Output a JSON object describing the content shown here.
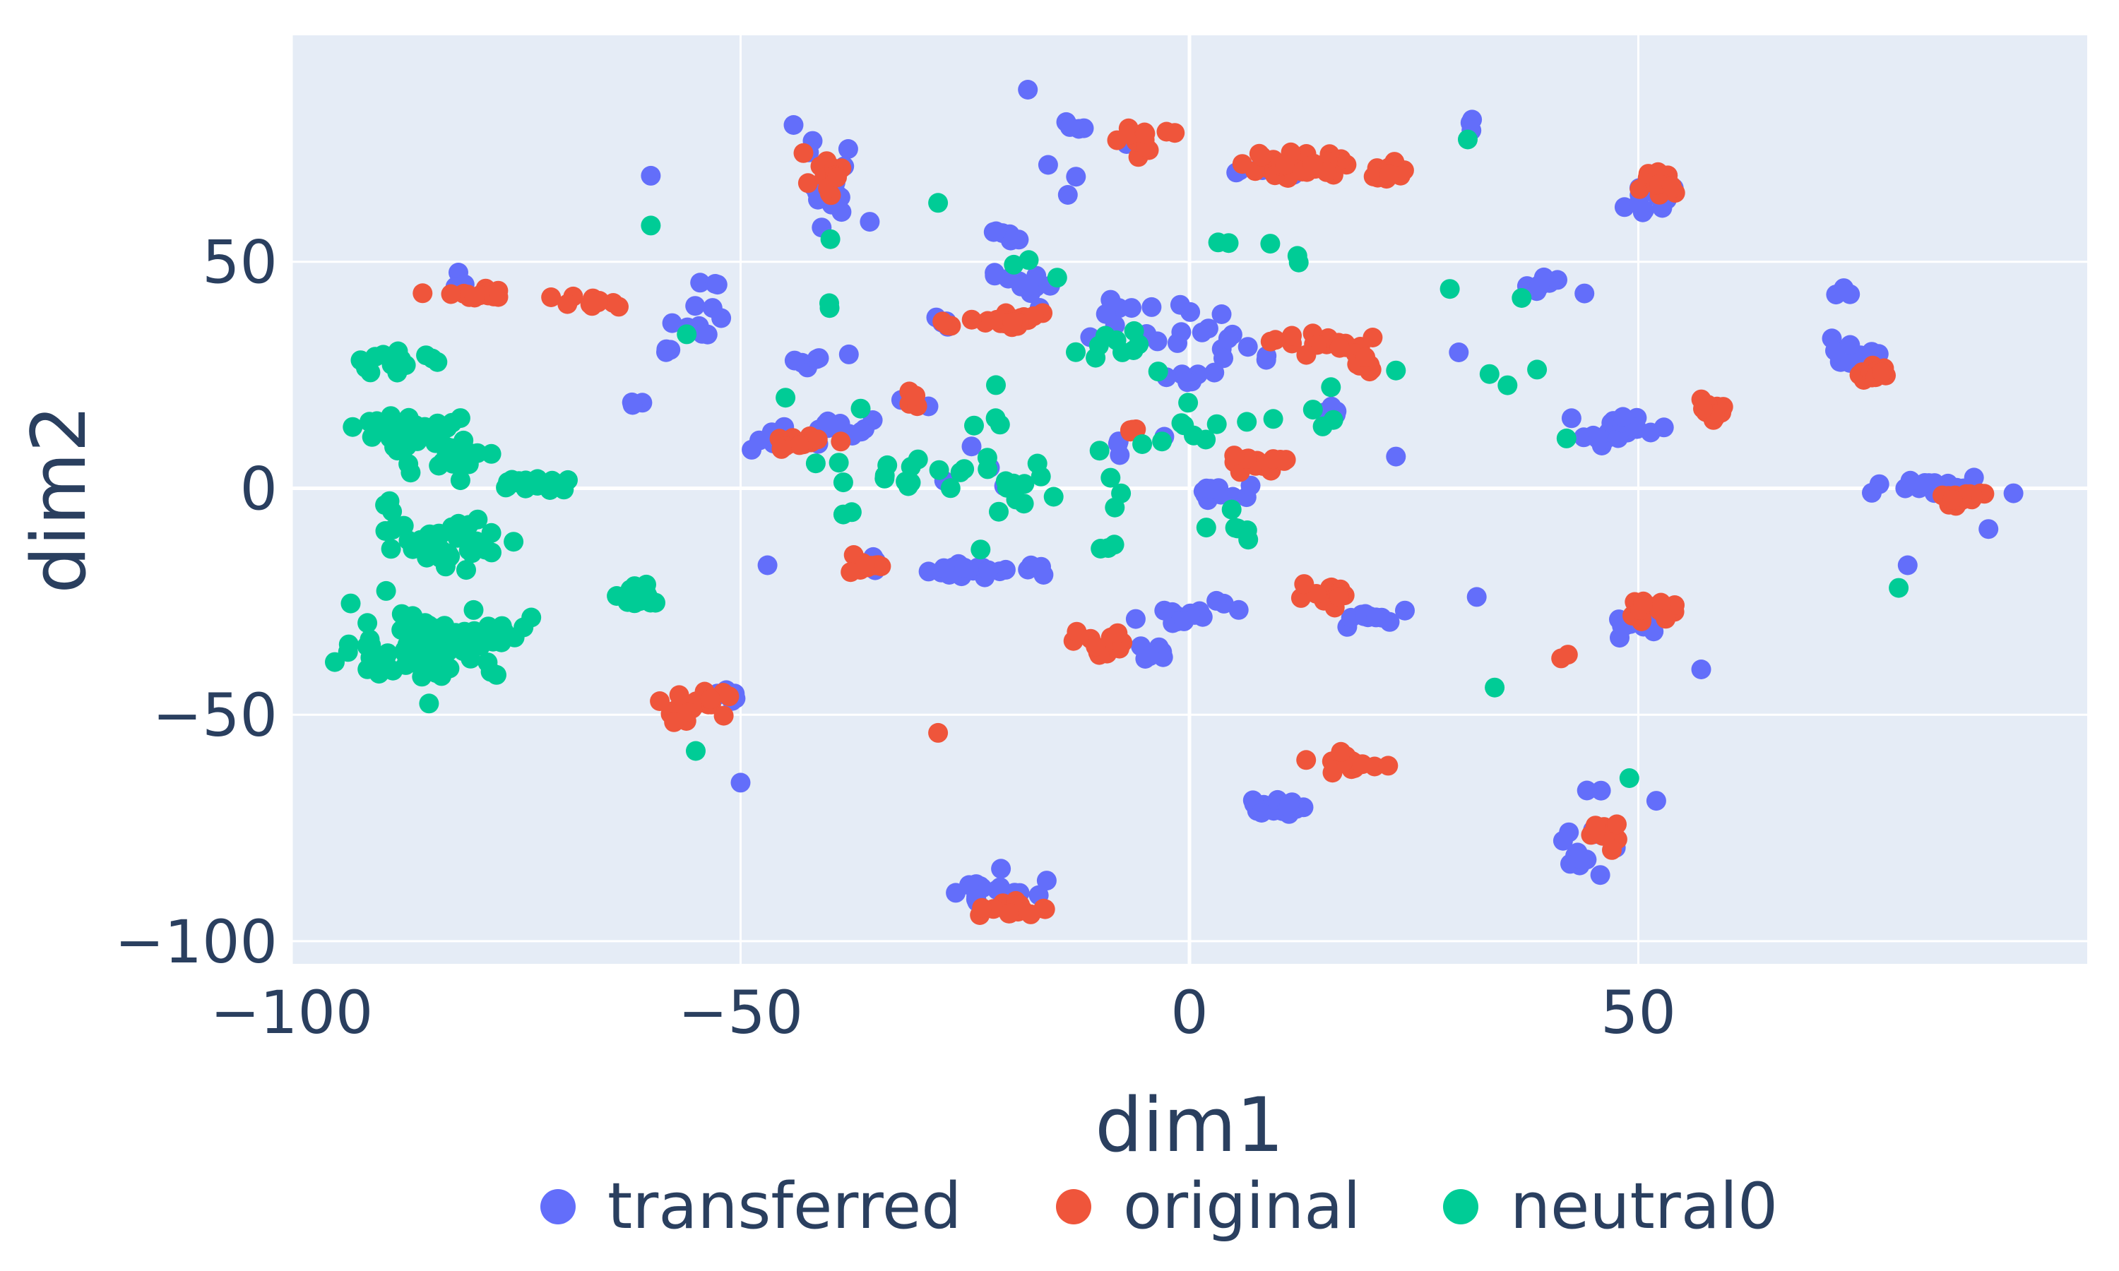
{
  "chart_data": {
    "type": "scatter",
    "xlabel": "dim1",
    "ylabel": "dim2",
    "xlim": [
      -100,
      100
    ],
    "ylim": [
      -105,
      100
    ],
    "x_ticks": [
      -100,
      -50,
      0,
      50
    ],
    "y_ticks": [
      -100,
      -50,
      0,
      50
    ],
    "x_tick_labels": [
      "−100",
      "−50",
      "0",
      "50"
    ],
    "y_tick_labels": [
      "−100",
      "−50",
      "0",
      "50"
    ],
    "grid": true,
    "plot_background": "#e5ecf6",
    "legend_placement": "bottom-center",
    "series": [
      {
        "name": "transferred",
        "color": "#636efa",
        "clusters": [
          {
            "cx": -81,
            "cy": 46,
            "sx": 0.6,
            "sy": 1,
            "n": 4
          },
          {
            "cx": -40,
            "cy": 63,
            "sx": 2,
            "sy": 4,
            "n": 16
          },
          {
            "cx": -43,
            "cy": 77,
            "sx": 1,
            "sy": 2,
            "n": 3
          },
          {
            "cx": -60,
            "cy": 69,
            "sx": 0.3,
            "sy": 0.3,
            "n": 1
          },
          {
            "cx": -62,
            "cy": 19,
            "sx": 1,
            "sy": 0.5,
            "n": 3
          },
          {
            "cx": -58,
            "cy": 30,
            "sx": 0.8,
            "sy": 1,
            "n": 3
          },
          {
            "cx": -54,
            "cy": 41,
            "sx": 2,
            "sy": 3,
            "n": 6
          },
          {
            "cx": -54,
            "cy": 35,
            "sx": 2,
            "sy": 1,
            "n": 5
          },
          {
            "cx": -42,
            "cy": 28,
            "sx": 2,
            "sy": 0.8,
            "n": 6
          },
          {
            "cx": -38,
            "cy": 13,
            "sx": 2,
            "sy": 1,
            "n": 10
          },
          {
            "cx": -46,
            "cy": 11,
            "sx": 2,
            "sy": 1.5,
            "n": 7
          },
          {
            "cx": -18,
            "cy": 88,
            "sx": 0.3,
            "sy": 0.3,
            "n": 1
          },
          {
            "cx": -12,
            "cy": 80,
            "sx": 1,
            "sy": 0.6,
            "n": 4
          },
          {
            "cx": -16,
            "cy": 69,
            "sx": 1.5,
            "sy": 2,
            "n": 3
          },
          {
            "cx": -21,
            "cy": 56,
            "sx": 1,
            "sy": 0.7,
            "n": 6
          },
          {
            "cx": -18,
            "cy": 45,
            "sx": 2,
            "sy": 2,
            "n": 10
          },
          {
            "cx": -28,
            "cy": 36,
            "sx": 1,
            "sy": 0.8,
            "n": 4
          },
          {
            "cx": -30,
            "cy": 20,
            "sx": 1,
            "sy": 1,
            "n": 3
          },
          {
            "cx": -9,
            "cy": 37,
            "sx": 3,
            "sy": 3,
            "n": 10
          },
          {
            "cx": -8,
            "cy": 9,
            "sx": 4,
            "sy": 3,
            "n": 4
          },
          {
            "cx": 4,
            "cy": 33,
            "sx": 4,
            "sy": 3,
            "n": 14
          },
          {
            "cx": 0,
            "cy": 25,
            "sx": 1.5,
            "sy": 1,
            "n": 6
          },
          {
            "cx": -22,
            "cy": -18,
            "sx": 4,
            "sy": 0.8,
            "n": 24
          },
          {
            "cx": -35,
            "cy": -16,
            "sx": 1,
            "sy": 1,
            "n": 4
          },
          {
            "cx": -25,
            "cy": 4,
            "sx": 3,
            "sy": 3,
            "n": 4
          },
          {
            "cx": 4,
            "cy": -1,
            "sx": 2,
            "sy": 0.8,
            "n": 12
          },
          {
            "cx": 0,
            "cy": -27,
            "sx": 3.5,
            "sy": 2,
            "n": 14
          },
          {
            "cx": -4,
            "cy": -36,
            "sx": 1,
            "sy": 1,
            "n": 6
          },
          {
            "cx": -47,
            "cy": -17,
            "sx": 0.3,
            "sy": 0.3,
            "n": 1
          },
          {
            "cx": -51,
            "cy": -45,
            "sx": 1,
            "sy": 1,
            "n": 7
          },
          {
            "cx": -50,
            "cy": -65,
            "sx": 0.3,
            "sy": 0.3,
            "n": 1
          },
          {
            "cx": -21,
            "cy": -89,
            "sx": 2.5,
            "sy": 2,
            "n": 18
          },
          {
            "cx": -21,
            "cy": -84,
            "sx": 0.3,
            "sy": 0.3,
            "n": 1
          },
          {
            "cx": 8,
            "cy": 70,
            "sx": 2,
            "sy": 0.8,
            "n": 12
          },
          {
            "cx": 8,
            "cy": -70,
            "sx": 2,
            "sy": 1,
            "n": 14
          },
          {
            "cx": 17,
            "cy": 17,
            "sx": 1,
            "sy": 0.7,
            "n": 4
          },
          {
            "cx": 20,
            "cy": -29,
            "sx": 2,
            "sy": 1,
            "n": 10
          },
          {
            "cx": 24,
            "cy": -27,
            "sx": 0.3,
            "sy": 0.3,
            "n": 1
          },
          {
            "cx": 23,
            "cy": 7,
            "sx": 0.3,
            "sy": 0.3,
            "n": 1
          },
          {
            "cx": 31,
            "cy": 80,
            "sx": 0.6,
            "sy": 1,
            "n": 3
          },
          {
            "cx": 30,
            "cy": 30,
            "sx": 0.3,
            "sy": 0.3,
            "n": 1
          },
          {
            "cx": 32,
            "cy": -24,
            "sx": 0.3,
            "sy": 0.3,
            "n": 1
          },
          {
            "cx": 39,
            "cy": 45,
            "sx": 1,
            "sy": 1,
            "n": 8
          },
          {
            "cx": 44,
            "cy": 43,
            "sx": 0.3,
            "sy": 0.3,
            "n": 1
          },
          {
            "cx": 48,
            "cy": 13,
            "sx": 2,
            "sy": 1.5,
            "n": 20
          },
          {
            "cx": 51,
            "cy": 64,
            "sx": 1.5,
            "sy": 2,
            "n": 10
          },
          {
            "cx": 50,
            "cy": -30,
            "sx": 1.5,
            "sy": 1.5,
            "n": 12
          },
          {
            "cx": 57,
            "cy": -40,
            "sx": 0.3,
            "sy": 0.3,
            "n": 1
          },
          {
            "cx": 43,
            "cy": -80,
            "sx": 2,
            "sy": 3,
            "n": 12
          },
          {
            "cx": 52,
            "cy": -69,
            "sx": 0.3,
            "sy": 0.3,
            "n": 1
          },
          {
            "cx": 45,
            "cy": -66,
            "sx": 1,
            "sy": 0.5,
            "n": 2
          },
          {
            "cx": 73,
            "cy": 43,
            "sx": 0.6,
            "sy": 0.8,
            "n": 3
          },
          {
            "cx": 74,
            "cy": 29,
            "sx": 2,
            "sy": 1.5,
            "n": 14
          },
          {
            "cx": 84,
            "cy": 0,
            "sx": 3,
            "sy": 1,
            "n": 22
          },
          {
            "cx": 76,
            "cy": -1,
            "sx": 0.3,
            "sy": 0.3,
            "n": 1
          },
          {
            "cx": 89,
            "cy": -9,
            "sx": 0.3,
            "sy": 0.3,
            "n": 1
          },
          {
            "cx": 80,
            "cy": -17,
            "sx": 0.3,
            "sy": 0.3,
            "n": 1
          },
          {
            "cx": -7,
            "cy": 76,
            "sx": 0.3,
            "sy": 0.3,
            "n": 1
          }
        ]
      },
      {
        "name": "original",
        "color": "#ef553b",
        "clusters": [
          {
            "cx": -78,
            "cy": 43,
            "sx": 3,
            "sy": 0.8,
            "n": 14
          },
          {
            "cx": -69,
            "cy": 41,
            "sx": 2,
            "sy": 0.8,
            "n": 10
          },
          {
            "cx": -40,
            "cy": 70,
            "sx": 1,
            "sy": 2,
            "n": 16
          },
          {
            "cx": -43,
            "cy": 74,
            "sx": 0.3,
            "sy": 0.3,
            "n": 1
          },
          {
            "cx": -6,
            "cy": 77,
            "sx": 1.5,
            "sy": 1.5,
            "n": 14
          },
          {
            "cx": -20,
            "cy": 37,
            "sx": 2,
            "sy": 1,
            "n": 24
          },
          {
            "cx": -27,
            "cy": 36,
            "sx": 0.6,
            "sy": 0.5,
            "n": 3
          },
          {
            "cx": -31,
            "cy": 19,
            "sx": 0.5,
            "sy": 0.8,
            "n": 4
          },
          {
            "cx": -44,
            "cy": 10,
            "sx": 2,
            "sy": 1,
            "n": 16
          },
          {
            "cx": -36,
            "cy": -17,
            "sx": 1.5,
            "sy": 1,
            "n": 12
          },
          {
            "cx": -55,
            "cy": -48,
            "sx": 2,
            "sy": 1.5,
            "n": 20
          },
          {
            "cx": -59,
            "cy": -47,
            "sx": 0.3,
            "sy": 0.3,
            "n": 1
          },
          {
            "cx": -28,
            "cy": -54,
            "sx": 0.3,
            "sy": 0.3,
            "n": 1
          },
          {
            "cx": -20,
            "cy": -93,
            "sx": 1.5,
            "sy": 1,
            "n": 16
          },
          {
            "cx": -10,
            "cy": -35,
            "sx": 1.5,
            "sy": 1.5,
            "n": 12
          },
          {
            "cx": -8,
            "cy": -32,
            "sx": 0.3,
            "sy": 0.3,
            "n": 1
          },
          {
            "cx": -6,
            "cy": 13,
            "sx": 0.5,
            "sy": 0.5,
            "n": 4
          },
          {
            "cx": 8,
            "cy": 6,
            "sx": 2,
            "sy": 0.8,
            "n": 18
          },
          {
            "cx": 15,
            "cy": 71,
            "sx": 5,
            "sy": 1.5,
            "n": 36
          },
          {
            "cx": 22,
            "cy": 69,
            "sx": 1,
            "sy": 0.5,
            "n": 4
          },
          {
            "cx": 16,
            "cy": 32,
            "sx": 3,
            "sy": 1,
            "n": 18
          },
          {
            "cx": 19,
            "cy": 27,
            "sx": 1,
            "sy": 2,
            "n": 8
          },
          {
            "cx": 15,
            "cy": -24,
            "sx": 1.5,
            "sy": 1,
            "n": 14
          },
          {
            "cx": 18,
            "cy": -61,
            "sx": 2,
            "sy": 1,
            "n": 18
          },
          {
            "cx": 13,
            "cy": -60,
            "sx": 0.3,
            "sy": 0.3,
            "n": 1
          },
          {
            "cx": 52,
            "cy": 67,
            "sx": 1,
            "sy": 1.5,
            "n": 16
          },
          {
            "cx": 58,
            "cy": 17,
            "sx": 1,
            "sy": 1,
            "n": 14
          },
          {
            "cx": 51,
            "cy": -27,
            "sx": 1.5,
            "sy": 1,
            "n": 14
          },
          {
            "cx": 46,
            "cy": -76,
            "sx": 1,
            "sy": 1.5,
            "n": 12
          },
          {
            "cx": 42,
            "cy": -37,
            "sx": 0.5,
            "sy": 0.5,
            "n": 2
          },
          {
            "cx": 76,
            "cy": 25,
            "sx": 1,
            "sy": 1,
            "n": 14
          },
          {
            "cx": 86,
            "cy": -2,
            "sx": 1.5,
            "sy": 1,
            "n": 18
          }
        ]
      },
      {
        "name": "neutral0",
        "color": "#00cc96",
        "clusters": [
          {
            "cx": -88,
            "cy": 28,
            "sx": 2,
            "sy": 1,
            "n": 22
          },
          {
            "cx": -86,
            "cy": 12,
            "sx": 3,
            "sy": 2,
            "n": 40
          },
          {
            "cx": -82,
            "cy": 7,
            "sx": 2,
            "sy": 2,
            "n": 16
          },
          {
            "cx": -73,
            "cy": 1,
            "sx": 3,
            "sy": 0.8,
            "n": 22
          },
          {
            "cx": -82,
            "cy": -12,
            "sx": 4,
            "sy": 3,
            "n": 42
          },
          {
            "cx": -89,
            "cy": -4,
            "sx": 0.5,
            "sy": 1,
            "n": 3
          },
          {
            "cx": -85,
            "cy": -34,
            "sx": 4,
            "sy": 4,
            "n": 80
          },
          {
            "cx": -76,
            "cy": -32,
            "sx": 2,
            "sy": 2,
            "n": 10
          },
          {
            "cx": -61,
            "cy": -24,
            "sx": 1.5,
            "sy": 1,
            "n": 16
          },
          {
            "cx": -60,
            "cy": 58,
            "sx": 0.3,
            "sy": 0.3,
            "n": 1
          },
          {
            "cx": -56,
            "cy": 34,
            "sx": 0.3,
            "sy": 0.3,
            "n": 1
          },
          {
            "cx": -40,
            "cy": 38,
            "sx": 0.5,
            "sy": 2,
            "n": 2
          },
          {
            "cx": -40,
            "cy": 55,
            "sx": 0.3,
            "sy": 0.3,
            "n": 1
          },
          {
            "cx": -45,
            "cy": 20,
            "sx": 0.3,
            "sy": 0.3,
            "n": 1
          },
          {
            "cx": -28,
            "cy": 63,
            "sx": 0.3,
            "sy": 0.3,
            "n": 1
          },
          {
            "cx": -20,
            "cy": 5,
            "sx": 8,
            "sy": 8,
            "n": 34
          },
          {
            "cx": -8,
            "cy": 30,
            "sx": 3,
            "sy": 3,
            "n": 10
          },
          {
            "cx": -18,
            "cy": 48,
            "sx": 1.5,
            "sy": 1.5,
            "n": 3
          },
          {
            "cx": -40,
            "cy": 0,
            "sx": 3,
            "sy": 4,
            "n": 4
          },
          {
            "cx": -30,
            "cy": 0,
            "sx": 3,
            "sy": 3,
            "n": 4
          },
          {
            "cx": -55,
            "cy": -58,
            "sx": 0.3,
            "sy": 0.3,
            "n": 1
          },
          {
            "cx": -9,
            "cy": -12,
            "sx": 1.5,
            "sy": 2,
            "n": 3
          },
          {
            "cx": 0,
            "cy": 12,
            "sx": 2,
            "sy": 4,
            "n": 6
          },
          {
            "cx": 4,
            "cy": 54,
            "sx": 1,
            "sy": 0.5,
            "n": 2
          },
          {
            "cx": 9,
            "cy": 54,
            "sx": 0.3,
            "sy": 0.3,
            "n": 1
          },
          {
            "cx": 12,
            "cy": 50,
            "sx": 0.8,
            "sy": 1,
            "n": 2
          },
          {
            "cx": 5,
            "cy": -8,
            "sx": 3,
            "sy": 4,
            "n": 6
          },
          {
            "cx": 8,
            "cy": 15,
            "sx": 1,
            "sy": 1,
            "n": 2
          },
          {
            "cx": 16,
            "cy": 16,
            "sx": 1.5,
            "sy": 3,
            "n": 4
          },
          {
            "cx": 23,
            "cy": 26,
            "sx": 0.3,
            "sy": 0.3,
            "n": 1
          },
          {
            "cx": 31,
            "cy": 77,
            "sx": 0.3,
            "sy": 0.3,
            "n": 1
          },
          {
            "cx": 29,
            "cy": 44,
            "sx": 0.3,
            "sy": 0.3,
            "n": 1
          },
          {
            "cx": 37,
            "cy": 25,
            "sx": 1.5,
            "sy": 1.5,
            "n": 3
          },
          {
            "cx": 37,
            "cy": 42,
            "sx": 0.3,
            "sy": 0.3,
            "n": 1
          },
          {
            "cx": 42,
            "cy": 11,
            "sx": 0.3,
            "sy": 0.3,
            "n": 1
          },
          {
            "cx": 34,
            "cy": -44,
            "sx": 0.3,
            "sy": 0.3,
            "n": 1
          },
          {
            "cx": 49,
            "cy": -64,
            "sx": 0.3,
            "sy": 0.3,
            "n": 1
          },
          {
            "cx": 79,
            "cy": -22,
            "sx": 0.3,
            "sy": 0.3,
            "n": 1
          }
        ]
      }
    ]
  }
}
